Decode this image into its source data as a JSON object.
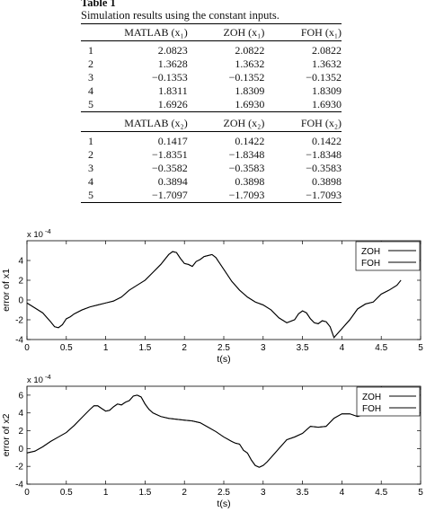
{
  "table": {
    "title": "Table 1",
    "caption": "Simulation results using the constant inputs.",
    "headers_x1": [
      "",
      "MATLAB (x₁)",
      "ZOH (x₁)",
      "FOH (x₁)"
    ],
    "rows_x1": [
      [
        "1",
        "2.0823",
        "2.0822",
        "2.0822"
      ],
      [
        "2",
        "1.3628",
        "1.3632",
        "1.3632"
      ],
      [
        "3",
        "−0.1353",
        "−0.1352",
        "−0.1352"
      ],
      [
        "4",
        "1.8311",
        "1.8309",
        "1.8309"
      ],
      [
        "5",
        "1.6926",
        "1.6930",
        "1.6930"
      ]
    ],
    "headers_x2": [
      "",
      "MATLAB (x₂)",
      "ZOH (x₂)",
      "FOH (x₂)"
    ],
    "rows_x2": [
      [
        "1",
        "0.1417",
        "0.1422",
        "0.1422"
      ],
      [
        "2",
        "−1.8351",
        "−1.8348",
        "−1.8348"
      ],
      [
        "3",
        "−0.3582",
        "−0.3583",
        "−0.3583"
      ],
      [
        "4",
        "0.3894",
        "0.3898",
        "0.3898"
      ],
      [
        "5",
        "−1.7097",
        "−1.7093",
        "−1.7093"
      ]
    ]
  },
  "chart_data": [
    {
      "type": "line",
      "xlabel": "t(s)",
      "ylabel": "error of x1",
      "exponent_label": "x 10",
      "exponent_power": "-4",
      "xlim": [
        0,
        5
      ],
      "ylim": [
        -4,
        6
      ],
      "xticks": [
        "0",
        "0.5",
        "1",
        "1.5",
        "2",
        "2.5",
        "3",
        "3.5",
        "4",
        "4.5",
        "5"
      ],
      "yticks": [
        "-4",
        "-2",
        "0",
        "2",
        "4"
      ],
      "ytick_values": [
        -4,
        -2,
        0,
        2,
        4
      ],
      "legend": [
        "ZOH",
        "FOH"
      ],
      "legend_position": "top-right",
      "line_color": "#000000",
      "x": [
        0.0,
        0.1,
        0.2,
        0.3,
        0.35,
        0.4,
        0.45,
        0.5,
        0.55,
        0.6,
        0.7,
        0.8,
        0.9,
        1.0,
        1.1,
        1.2,
        1.3,
        1.4,
        1.5,
        1.6,
        1.7,
        1.8,
        1.85,
        1.9,
        1.95,
        2.0,
        2.05,
        2.1,
        2.15,
        2.2,
        2.25,
        2.3,
        2.35,
        2.4,
        2.5,
        2.6,
        2.7,
        2.8,
        2.9,
        3.0,
        3.1,
        3.2,
        3.3,
        3.4,
        3.45,
        3.5,
        3.55,
        3.6,
        3.65,
        3.7,
        3.75,
        3.8,
        3.85,
        3.9,
        4.0,
        4.1,
        4.2,
        4.3,
        4.4,
        4.5,
        4.6,
        4.7,
        4.75
      ],
      "series": [
        {
          "name": "ZOH",
          "values": [
            -0.3,
            -0.8,
            -1.3,
            -2.2,
            -2.7,
            -2.8,
            -2.5,
            -1.9,
            -1.7,
            -1.4,
            -1.0,
            -0.7,
            -0.5,
            -0.3,
            -0.1,
            0.3,
            1.0,
            1.5,
            2.0,
            2.8,
            3.6,
            4.6,
            4.9,
            4.8,
            4.2,
            3.7,
            3.6,
            3.4,
            3.9,
            4.1,
            4.4,
            4.5,
            4.6,
            4.3,
            3.1,
            1.9,
            1.0,
            0.3,
            -0.2,
            -0.5,
            -1.0,
            -1.8,
            -2.3,
            -2.0,
            -1.4,
            -1.1,
            -1.3,
            -1.9,
            -2.3,
            -2.4,
            -2.1,
            -2.2,
            -2.7,
            -3.8,
            -2.9,
            -2.0,
            -0.9,
            -0.4,
            -0.2,
            0.6,
            1.0,
            1.5,
            2.0
          ]
        },
        {
          "name": "FOH",
          "values": [
            -0.3,
            -0.8,
            -1.3,
            -2.2,
            -2.7,
            -2.8,
            -2.5,
            -1.9,
            -1.7,
            -1.4,
            -1.0,
            -0.7,
            -0.5,
            -0.3,
            -0.1,
            0.3,
            1.0,
            1.5,
            2.0,
            2.8,
            3.6,
            4.6,
            4.9,
            4.8,
            4.2,
            3.7,
            3.6,
            3.4,
            3.9,
            4.1,
            4.4,
            4.5,
            4.6,
            4.3,
            3.1,
            1.9,
            1.0,
            0.3,
            -0.2,
            -0.5,
            -1.0,
            -1.8,
            -2.3,
            -2.0,
            -1.4,
            -1.1,
            -1.3,
            -1.9,
            -2.3,
            -2.4,
            -2.1,
            -2.2,
            -2.7,
            -3.8,
            -2.9,
            -2.0,
            -0.9,
            -0.4,
            -0.2,
            0.6,
            1.0,
            1.5,
            2.0
          ]
        }
      ]
    },
    {
      "type": "line",
      "xlabel": "t(s)",
      "ylabel": "error of x2",
      "exponent_label": "x 10",
      "exponent_power": "-4",
      "xlim": [
        0,
        5
      ],
      "ylim": [
        -4,
        7
      ],
      "xticks": [
        "0",
        "0.5",
        "1",
        "1.5",
        "2",
        "2.5",
        "3",
        "3.5",
        "4",
        "4.5",
        "5"
      ],
      "yticks": [
        "-4",
        "-2",
        "0",
        "2",
        "4",
        "6"
      ],
      "ytick_values": [
        -4,
        -2,
        0,
        2,
        4,
        6
      ],
      "legend": [
        "ZOH",
        "FOH"
      ],
      "legend_position": "top-right",
      "line_color": "#000000",
      "x": [
        0.0,
        0.1,
        0.2,
        0.3,
        0.4,
        0.5,
        0.6,
        0.7,
        0.8,
        0.85,
        0.9,
        0.95,
        1.0,
        1.05,
        1.1,
        1.15,
        1.2,
        1.25,
        1.3,
        1.35,
        1.4,
        1.45,
        1.5,
        1.55,
        1.6,
        1.7,
        1.8,
        1.9,
        2.0,
        2.1,
        2.2,
        2.3,
        2.4,
        2.5,
        2.6,
        2.65,
        2.7,
        2.75,
        2.8,
        2.85,
        2.9,
        2.95,
        3.0,
        3.05,
        3.1,
        3.2,
        3.3,
        3.4,
        3.5,
        3.6,
        3.7,
        3.8,
        3.9,
        4.0,
        4.1,
        4.2,
        4.3,
        4.4,
        4.5,
        4.6,
        4.7
      ],
      "series": [
        {
          "name": "ZOH",
          "values": [
            -0.5,
            -0.3,
            0.2,
            0.8,
            1.3,
            1.8,
            2.6,
            3.5,
            4.4,
            4.8,
            4.8,
            4.5,
            4.2,
            4.3,
            4.7,
            5.0,
            4.9,
            5.2,
            5.4,
            5.9,
            6.0,
            5.8,
            5.0,
            4.4,
            4.0,
            3.6,
            3.4,
            3.3,
            3.2,
            3.1,
            2.9,
            2.4,
            1.9,
            1.3,
            0.8,
            0.6,
            0.5,
            -0.2,
            -0.5,
            -1.3,
            -1.9,
            -2.1,
            -1.9,
            -1.5,
            -1.0,
            0.0,
            1.0,
            1.3,
            1.7,
            2.5,
            2.4,
            2.5,
            3.4,
            3.9,
            3.9,
            3.6,
            3.9,
            4.1,
            4.2,
            4.4,
            4.6
          ]
        },
        {
          "name": "FOH",
          "values": [
            -0.5,
            -0.3,
            0.2,
            0.8,
            1.3,
            1.8,
            2.6,
            3.5,
            4.4,
            4.8,
            4.8,
            4.5,
            4.2,
            4.3,
            4.7,
            5.0,
            4.9,
            5.2,
            5.4,
            5.9,
            6.0,
            5.8,
            5.0,
            4.4,
            4.0,
            3.6,
            3.4,
            3.3,
            3.2,
            3.1,
            2.9,
            2.4,
            1.9,
            1.3,
            0.8,
            0.6,
            0.5,
            -0.2,
            -0.5,
            -1.3,
            -1.9,
            -2.1,
            -1.9,
            -1.5,
            -1.0,
            0.0,
            1.0,
            1.3,
            1.7,
            2.5,
            2.4,
            2.5,
            3.4,
            3.9,
            3.9,
            3.6,
            3.9,
            4.1,
            4.2,
            4.4,
            4.6
          ]
        }
      ]
    }
  ]
}
